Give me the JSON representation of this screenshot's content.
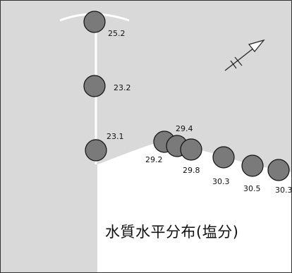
{
  "title": "水質水平分布(塩分)",
  "colors": {
    "land": "#d9d9d9",
    "water": "#ffffff",
    "river_line": "#ffffff",
    "station_fill": "#7a7a7a",
    "station_stroke": "#111111",
    "arrow": "#222222"
  },
  "icons": [
    "north-arrow-icon"
  ],
  "stations": [
    {
      "id": "st-1",
      "label": "25.2"
    },
    {
      "id": "st-2",
      "label": "23.2"
    },
    {
      "id": "st-3",
      "label": "23.1"
    },
    {
      "id": "st-4",
      "label": "29.2"
    },
    {
      "id": "st-5",
      "label": "29.4"
    },
    {
      "id": "st-6",
      "label": "29.8"
    },
    {
      "id": "st-7",
      "label": "30.3"
    },
    {
      "id": "st-8",
      "label": "30.5"
    },
    {
      "id": "st-9",
      "label": "30.3"
    }
  ]
}
